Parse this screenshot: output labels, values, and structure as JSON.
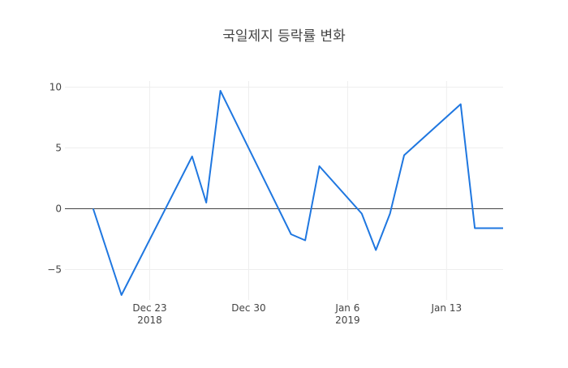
{
  "chart_data": {
    "type": "line",
    "title": "국일제지 등락률 변화",
    "xlabel": "",
    "ylabel": "",
    "x_axis": {
      "type": "date",
      "range": [
        "2018-12-17",
        "2019-01-17"
      ],
      "ticks": [
        {
          "date": "2018-12-23",
          "label": "Dec 23",
          "sublabel": "2018"
        },
        {
          "date": "2018-12-30",
          "label": "Dec 30",
          "sublabel": ""
        },
        {
          "date": "2019-01-06",
          "label": "Jan 6",
          "sublabel": "2019"
        },
        {
          "date": "2019-01-13",
          "label": "Jan 13",
          "sublabel": ""
        }
      ]
    },
    "y_axis": {
      "range": [
        -7.5,
        10.5
      ],
      "ticks": [
        {
          "value": 10,
          "label": "10"
        },
        {
          "value": 5,
          "label": "5"
        },
        {
          "value": 0,
          "label": "0"
        },
        {
          "value": -5,
          "label": "−5"
        }
      ]
    },
    "grid": true,
    "zero_line": true,
    "series": [
      {
        "color": "#1f77e0",
        "points": [
          {
            "x": "2018-12-19",
            "y": 0.0
          },
          {
            "x": "2018-12-21",
            "y": -7.1
          },
          {
            "x": "2018-12-26",
            "y": 4.3
          },
          {
            "x": "2018-12-27",
            "y": 0.5
          },
          {
            "x": "2018-12-28",
            "y": 9.7
          },
          {
            "x": "2019-01-02",
            "y": -2.1
          },
          {
            "x": "2019-01-03",
            "y": -2.6
          },
          {
            "x": "2019-01-04",
            "y": 3.5
          },
          {
            "x": "2019-01-07",
            "y": -0.4
          },
          {
            "x": "2019-01-08",
            "y": -3.4
          },
          {
            "x": "2019-01-09",
            "y": -0.4
          },
          {
            "x": "2019-01-10",
            "y": 4.4
          },
          {
            "x": "2019-01-14",
            "y": 8.6
          },
          {
            "x": "2019-01-15",
            "y": -1.6
          },
          {
            "x": "2019-01-17",
            "y": -1.6
          }
        ]
      }
    ]
  }
}
